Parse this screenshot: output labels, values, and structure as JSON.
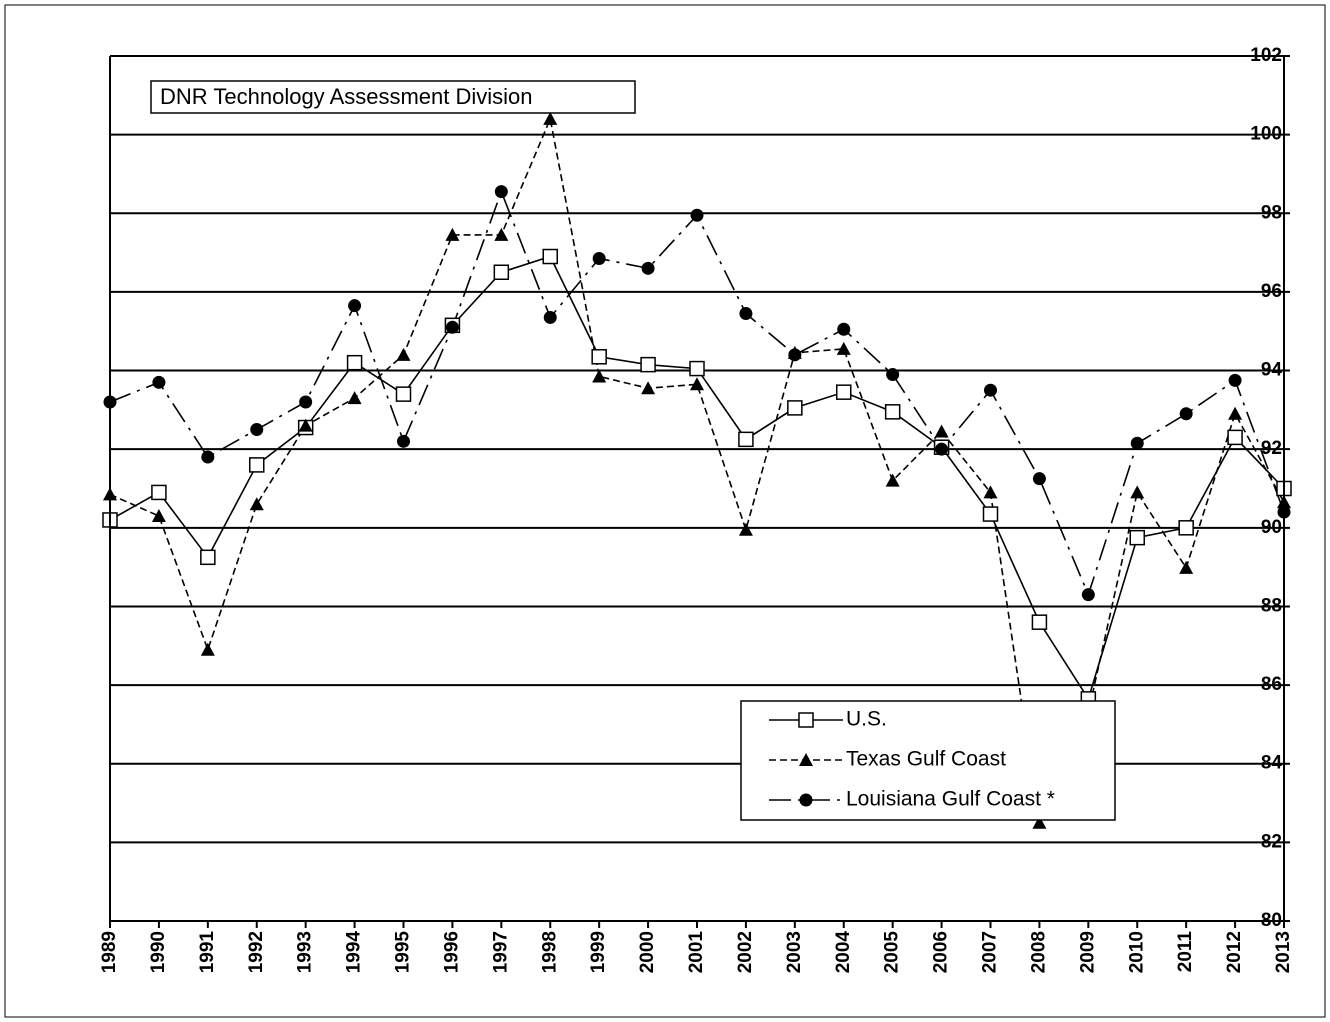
{
  "chart_data": {
    "type": "line",
    "annotation": "DNR Technology Assessment Division",
    "x": [
      1989,
      1990,
      1991,
      1992,
      1993,
      1994,
      1995,
      1996,
      1997,
      1998,
      1999,
      2000,
      2001,
      2002,
      2003,
      2004,
      2005,
      2006,
      2007,
      2008,
      2009,
      2010,
      2011,
      2012,
      2013
    ],
    "xlim": [
      1989,
      2013
    ],
    "xticks": [
      1989,
      1990,
      1991,
      1992,
      1993,
      1994,
      1995,
      1996,
      1997,
      1998,
      1999,
      2000,
      2001,
      2002,
      2003,
      2004,
      2005,
      2006,
      2007,
      2008,
      2009,
      2010,
      2011,
      2012,
      2013
    ],
    "ylim": [
      80,
      102
    ],
    "yticks": [
      80,
      82,
      84,
      86,
      88,
      90,
      92,
      94,
      96,
      98,
      100,
      102
    ],
    "grid": true,
    "legend": "lower right",
    "series": [
      {
        "name": "U.S.",
        "color": "#000000",
        "marker": "square",
        "dash": "solid",
        "values": [
          90.2,
          90.9,
          89.25,
          91.6,
          92.55,
          94.2,
          93.4,
          95.15,
          96.5,
          96.9,
          94.35,
          94.15,
          94.05,
          92.25,
          93.05,
          93.45,
          92.95,
          92.05,
          90.35,
          87.6,
          85.65,
          89.75,
          90.0,
          92.3,
          91.0
        ]
      },
      {
        "name": "Texas Gulf Coast",
        "color": "#000000",
        "marker": "triangle",
        "dash": "dashed",
        "values": [
          90.85,
          90.3,
          86.9,
          90.6,
          92.6,
          93.3,
          94.4,
          97.45,
          97.45,
          100.4,
          93.85,
          93.55,
          93.65,
          89.95,
          94.45,
          94.55,
          91.2,
          92.45,
          90.9,
          82.5,
          85.3,
          90.9,
          88.98,
          92.9,
          90.65
        ]
      },
      {
        "name": "Louisiana Gulf Coast *",
        "color": "#000000",
        "marker": "circle",
        "dash": "dashdot",
        "values": [
          93.2,
          93.7,
          91.8,
          92.5,
          93.2,
          95.65,
          92.2,
          95.1,
          98.55,
          95.35,
          96.85,
          96.6,
          97.95,
          95.45,
          94.4,
          95.05,
          93.9,
          92.0,
          93.5,
          91.25,
          88.3,
          92.15,
          92.9,
          93.75,
          90.4
        ]
      }
    ]
  }
}
